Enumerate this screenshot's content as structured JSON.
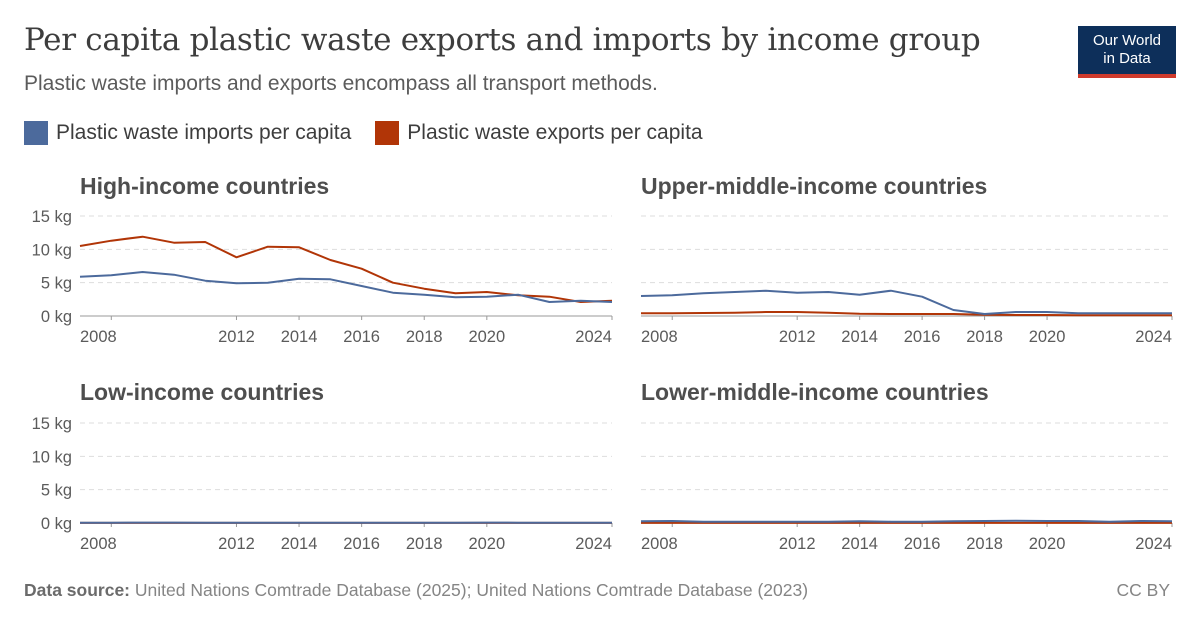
{
  "header": {
    "title": "Per capita plastic waste exports and imports by income group",
    "subtitle": "Plastic waste imports and exports encompass all transport methods.",
    "logo_line1": "Our World",
    "logo_line2": "in Data"
  },
  "footer": {
    "source_label": "Data source:",
    "source_text": "United Nations Comtrade Database (2025); United Nations Comtrade Database (2023)",
    "license": "CC BY"
  },
  "chart_data": {
    "type": "line",
    "unit": "kg",
    "ylim": [
      0,
      15
    ],
    "yticks": [
      0,
      5,
      10,
      15
    ],
    "ytick_labels": [
      "0 kg",
      "5 kg",
      "10 kg",
      "15 kg"
    ],
    "xlim": [
      2007,
      2024
    ],
    "xticks": [
      2008,
      2012,
      2014,
      2016,
      2018,
      2020,
      2024
    ],
    "grid": true,
    "legend_placement": "top-left",
    "colors": {
      "imports": "#4c6a9c",
      "exports": "#b13507"
    },
    "legend": [
      {
        "key": "imports",
        "label": "Plastic waste imports per capita"
      },
      {
        "key": "exports",
        "label": "Plastic waste exports per capita"
      }
    ],
    "panels": [
      {
        "title": "High-income countries",
        "years": [
          2007,
          2008,
          2009,
          2010,
          2011,
          2012,
          2013,
          2014,
          2015,
          2016,
          2017,
          2018,
          2019,
          2020,
          2021,
          2022,
          2023,
          2024
        ],
        "imports": [
          5.9,
          6.1,
          6.6,
          6.2,
          5.3,
          4.9,
          5.0,
          5.6,
          5.5,
          4.5,
          3.5,
          3.2,
          2.8,
          2.9,
          3.2,
          2.1,
          2.3,
          2.1
        ],
        "exports": [
          10.5,
          11.3,
          11.9,
          11.0,
          11.1,
          8.8,
          10.4,
          10.3,
          8.4,
          7.1,
          5.0,
          4.1,
          3.4,
          3.6,
          3.1,
          2.9,
          2.1,
          2.3
        ]
      },
      {
        "title": "Upper-middle-income countries",
        "years": [
          2007,
          2008,
          2009,
          2010,
          2011,
          2012,
          2013,
          2014,
          2015,
          2016,
          2017,
          2018,
          2019,
          2020,
          2021,
          2022,
          2023,
          2024
        ],
        "imports": [
          3.0,
          3.1,
          3.4,
          3.6,
          3.8,
          3.5,
          3.6,
          3.2,
          3.8,
          2.9,
          0.9,
          0.3,
          0.6,
          0.6,
          0.4,
          0.4,
          0.4,
          0.4
        ],
        "exports": [
          0.4,
          0.4,
          0.45,
          0.5,
          0.6,
          0.6,
          0.5,
          0.35,
          0.3,
          0.3,
          0.3,
          0.2,
          0.15,
          0.15,
          0.1,
          0.1,
          0.1,
          0.1
        ]
      },
      {
        "title": "Low-income countries",
        "years": [
          2007,
          2008,
          2009,
          2010,
          2011,
          2012,
          2013,
          2014,
          2015,
          2016,
          2017,
          2018,
          2019,
          2020,
          2021,
          2022,
          2023,
          2024
        ],
        "imports": [
          0.05,
          0.05,
          0.06,
          0.06,
          0.05,
          0.05,
          0.05,
          0.05,
          0.05,
          0.05,
          0.05,
          0.05,
          0.05,
          0.06,
          0.05,
          0.05,
          0.05,
          0.05
        ],
        "exports": [
          0.01,
          0.01,
          0.01,
          0.01,
          0.01,
          0.01,
          0.01,
          0.01,
          0.01,
          0.01,
          0.01,
          0.01,
          0.01,
          0.01,
          0.01,
          0.01,
          0.01,
          0.01
        ]
      },
      {
        "title": "Lower-middle-income countries",
        "years": [
          2007,
          2008,
          2009,
          2010,
          2011,
          2012,
          2013,
          2014,
          2015,
          2016,
          2017,
          2018,
          2019,
          2020,
          2021,
          2022,
          2023,
          2024
        ],
        "imports": [
          0.25,
          0.3,
          0.2,
          0.2,
          0.2,
          0.2,
          0.2,
          0.25,
          0.2,
          0.2,
          0.25,
          0.3,
          0.35,
          0.3,
          0.3,
          0.2,
          0.3,
          0.25
        ],
        "exports": [
          0.02,
          0.02,
          0.02,
          0.02,
          0.02,
          0.02,
          0.02,
          0.02,
          0.02,
          0.02,
          0.02,
          0.02,
          0.02,
          0.02,
          0.02,
          0.02,
          0.02,
          0.02
        ]
      }
    ]
  }
}
